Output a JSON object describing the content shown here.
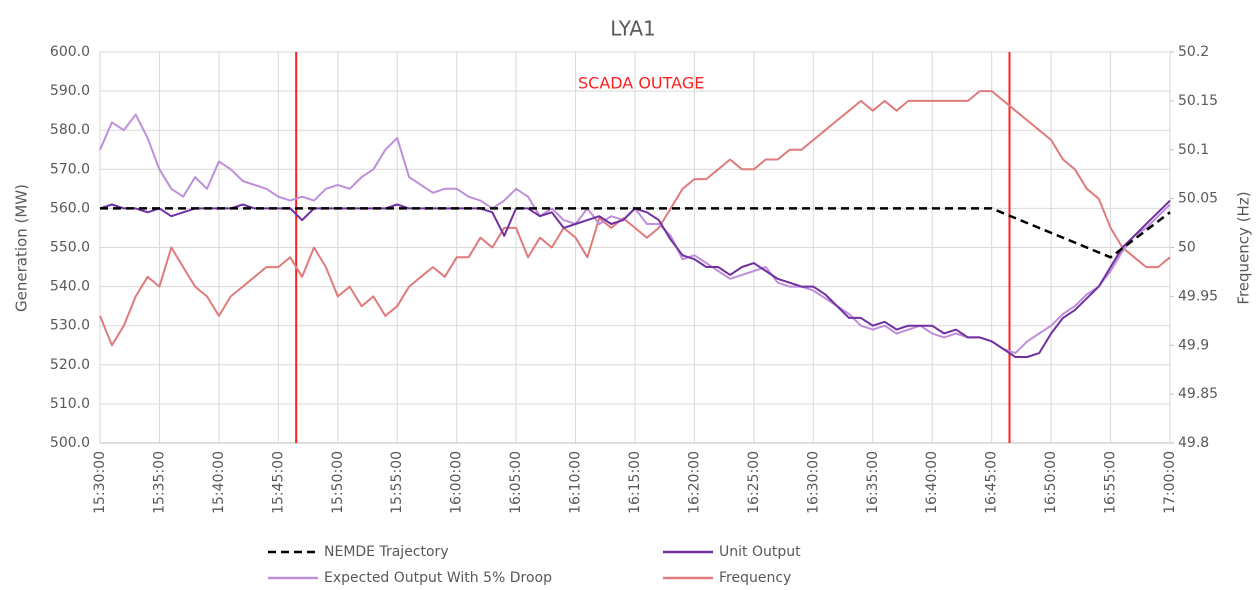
{
  "chart_data": {
    "type": "line",
    "title": "LYA1",
    "y_label": "Generation (MW)",
    "y2_label": "Frequency (Hz)",
    "annotation": {
      "text": "SCADA OUTAGE",
      "x": [
        "15:46:30",
        "16:46:30"
      ],
      "color": "#ff2020"
    },
    "grid": true,
    "xlim": [
      "15:30:00",
      "17:00:00"
    ],
    "xticks": [
      "15:30:00",
      "15:35:00",
      "15:40:00",
      "15:45:00",
      "15:50:00",
      "15:55:00",
      "16:00:00",
      "16:05:00",
      "16:10:00",
      "16:15:00",
      "16:20:00",
      "16:25:00",
      "16:30:00",
      "16:35:00",
      "16:40:00",
      "16:45:00",
      "16:50:00",
      "16:55:00",
      "17:00:00"
    ],
    "ylim": [
      500,
      600
    ],
    "yticks": [
      {
        "value": 500,
        "label": "500.0"
      },
      {
        "value": 510,
        "label": "510.0"
      },
      {
        "value": 520,
        "label": "520.0"
      },
      {
        "value": 530,
        "label": "530.0"
      },
      {
        "value": 540,
        "label": "540.0"
      },
      {
        "value": 550,
        "label": "550.0"
      },
      {
        "value": 560,
        "label": "560.0"
      },
      {
        "value": 570,
        "label": "570.0"
      },
      {
        "value": 580,
        "label": "580.0"
      },
      {
        "value": 590,
        "label": "590.0"
      },
      {
        "value": 600,
        "label": "600.0"
      }
    ],
    "y2lim": [
      49.8,
      50.2
    ],
    "y2ticks": [
      49.8,
      49.85,
      49.9,
      49.95,
      50,
      50.05,
      50.1,
      50.15,
      50.2
    ],
    "x": [
      "15:30:00",
      "15:31:00",
      "15:32:00",
      "15:33:00",
      "15:34:00",
      "15:35:00",
      "15:36:00",
      "15:37:00",
      "15:38:00",
      "15:39:00",
      "15:40:00",
      "15:41:00",
      "15:42:00",
      "15:43:00",
      "15:44:00",
      "15:45:00",
      "15:46:00",
      "15:47:00",
      "15:48:00",
      "15:49:00",
      "15:50:00",
      "15:51:00",
      "15:52:00",
      "15:53:00",
      "15:54:00",
      "15:55:00",
      "15:56:00",
      "15:57:00",
      "15:58:00",
      "15:59:00",
      "16:00:00",
      "16:01:00",
      "16:02:00",
      "16:03:00",
      "16:04:00",
      "16:05:00",
      "16:06:00",
      "16:07:00",
      "16:08:00",
      "16:09:00",
      "16:10:00",
      "16:11:00",
      "16:12:00",
      "16:13:00",
      "16:14:00",
      "16:15:00",
      "16:16:00",
      "16:17:00",
      "16:18:00",
      "16:19:00",
      "16:20:00",
      "16:21:00",
      "16:22:00",
      "16:23:00",
      "16:24:00",
      "16:25:00",
      "16:26:00",
      "16:27:00",
      "16:28:00",
      "16:29:00",
      "16:30:00",
      "16:31:00",
      "16:32:00",
      "16:33:00",
      "16:34:00",
      "16:35:00",
      "16:36:00",
      "16:37:00",
      "16:38:00",
      "16:39:00",
      "16:40:00",
      "16:41:00",
      "16:42:00",
      "16:43:00",
      "16:44:00",
      "16:45:00",
      "16:46:00",
      "16:47:00",
      "16:48:00",
      "16:49:00",
      "16:50:00",
      "16:51:00",
      "16:52:00",
      "16:53:00",
      "16:54:00",
      "16:55:00",
      "16:56:00",
      "16:57:00",
      "16:58:00",
      "16:59:00",
      "17:00:00"
    ],
    "series": [
      {
        "name": "NEMDE Trajectory",
        "color": "#000000",
        "dashed": true,
        "x": [
          "15:30:00",
          "16:45:00",
          "16:55:00",
          "17:00:00"
        ],
        "values": [
          560,
          560,
          547.5,
          559
        ]
      },
      {
        "name": "Unit Output",
        "color": "#7030a0",
        "values": [
          560,
          561,
          560,
          560,
          559,
          560,
          558,
          559,
          560,
          560,
          560,
          560,
          561,
          560,
          560,
          560,
          560,
          557,
          560,
          560,
          560,
          560,
          560,
          560,
          560,
          561,
          560,
          560,
          560,
          560,
          560,
          560,
          560,
          559,
          553,
          560,
          560,
          558,
          559,
          555,
          556,
          557,
          558,
          556,
          557,
          560,
          559,
          557,
          552,
          548,
          547,
          545,
          545,
          543,
          545,
          546,
          544,
          542,
          541,
          540,
          540,
          538,
          535,
          532,
          532,
          530,
          531,
          529,
          530,
          530,
          530,
          528,
          529,
          527,
          527,
          526,
          524,
          522,
          522,
          523,
          528,
          532,
          534,
          537,
          540,
          545,
          550,
          553,
          556,
          559,
          562
        ]
      },
      {
        "name": "Expected Output With 5% Droop",
        "color": "#bf8fd9",
        "values": [
          575,
          582,
          580,
          584,
          578,
          570,
          565,
          563,
          568,
          565,
          572,
          570,
          567,
          566,
          565,
          563,
          562,
          563,
          562,
          565,
          566,
          565,
          568,
          570,
          575,
          578,
          568,
          566,
          564,
          565,
          565,
          563,
          562,
          560,
          562,
          565,
          563,
          558,
          560,
          557,
          556,
          560,
          556,
          558,
          557,
          560,
          556,
          556,
          553,
          547,
          548,
          546,
          544,
          542,
          543,
          544,
          545,
          541,
          540,
          540,
          539,
          537,
          535,
          533,
          530,
          529,
          530,
          528,
          529,
          530,
          528,
          527,
          528,
          527,
          527,
          526,
          524,
          523,
          526,
          528,
          530,
          533,
          535,
          538,
          540,
          544,
          549,
          553,
          555,
          558,
          561
        ]
      },
      {
        "name": "Frequency",
        "color": "#e07b7b",
        "axis": "y2",
        "values": [
          49.93,
          49.9,
          49.92,
          49.95,
          49.97,
          49.96,
          50,
          49.98,
          49.96,
          49.95,
          49.93,
          49.95,
          49.96,
          49.97,
          49.98,
          49.98,
          49.99,
          49.97,
          50,
          49.98,
          49.95,
          49.96,
          49.94,
          49.95,
          49.93,
          49.94,
          49.96,
          49.97,
          49.98,
          49.97,
          49.99,
          49.99,
          50.01,
          50,
          50.02,
          50.02,
          49.99,
          50.01,
          50,
          50.02,
          50.01,
          49.99,
          50.03,
          50.02,
          50.03,
          50.02,
          50.01,
          50.02,
          50.04,
          50.06,
          50.07,
          50.07,
          50.08,
          50.09,
          50.08,
          50.08,
          50.09,
          50.09,
          50.1,
          50.1,
          50.11,
          50.12,
          50.13,
          50.14,
          50.15,
          50.14,
          50.15,
          50.14,
          50.15,
          50.15,
          50.15,
          50.15,
          50.15,
          50.15,
          50.16,
          50.16,
          50.15,
          50.14,
          50.13,
          50.12,
          50.11,
          50.09,
          50.08,
          50.06,
          50.05,
          50.02,
          50,
          49.99,
          49.98,
          49.98,
          49.99
        ]
      }
    ]
  }
}
